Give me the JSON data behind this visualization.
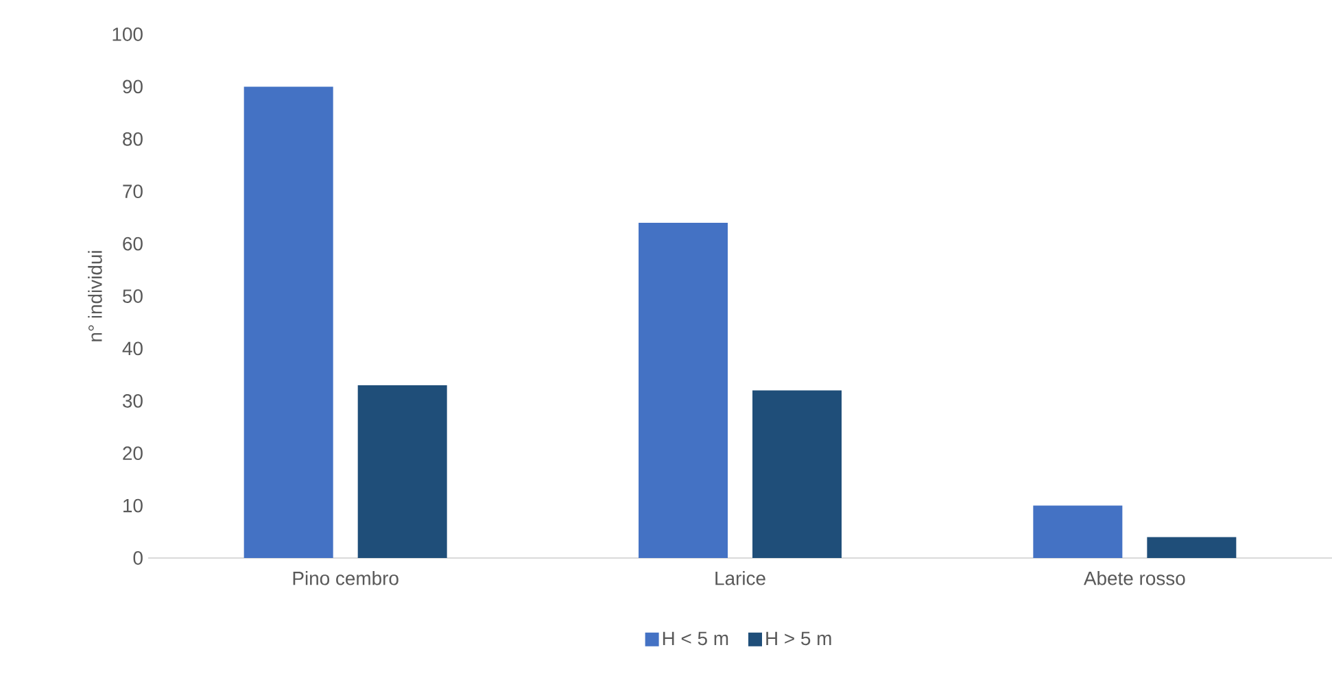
{
  "chart_data": {
    "type": "bar",
    "ylabel": "n° individui",
    "categories": [
      "Pino cembro",
      "Larice",
      "Abete rosso"
    ],
    "series": [
      {
        "name": "H < 5 m",
        "color": "#4472c4",
        "values": [
          90,
          64,
          10
        ]
      },
      {
        "name": "H > 5 m",
        "color": "#1f4e79",
        "values": [
          33,
          32,
          4
        ]
      }
    ],
    "ylim": [
      0,
      100
    ],
    "yticks": [
      0,
      10,
      20,
      30,
      40,
      50,
      60,
      70,
      80,
      90,
      100
    ],
    "legend": "bottom"
  }
}
